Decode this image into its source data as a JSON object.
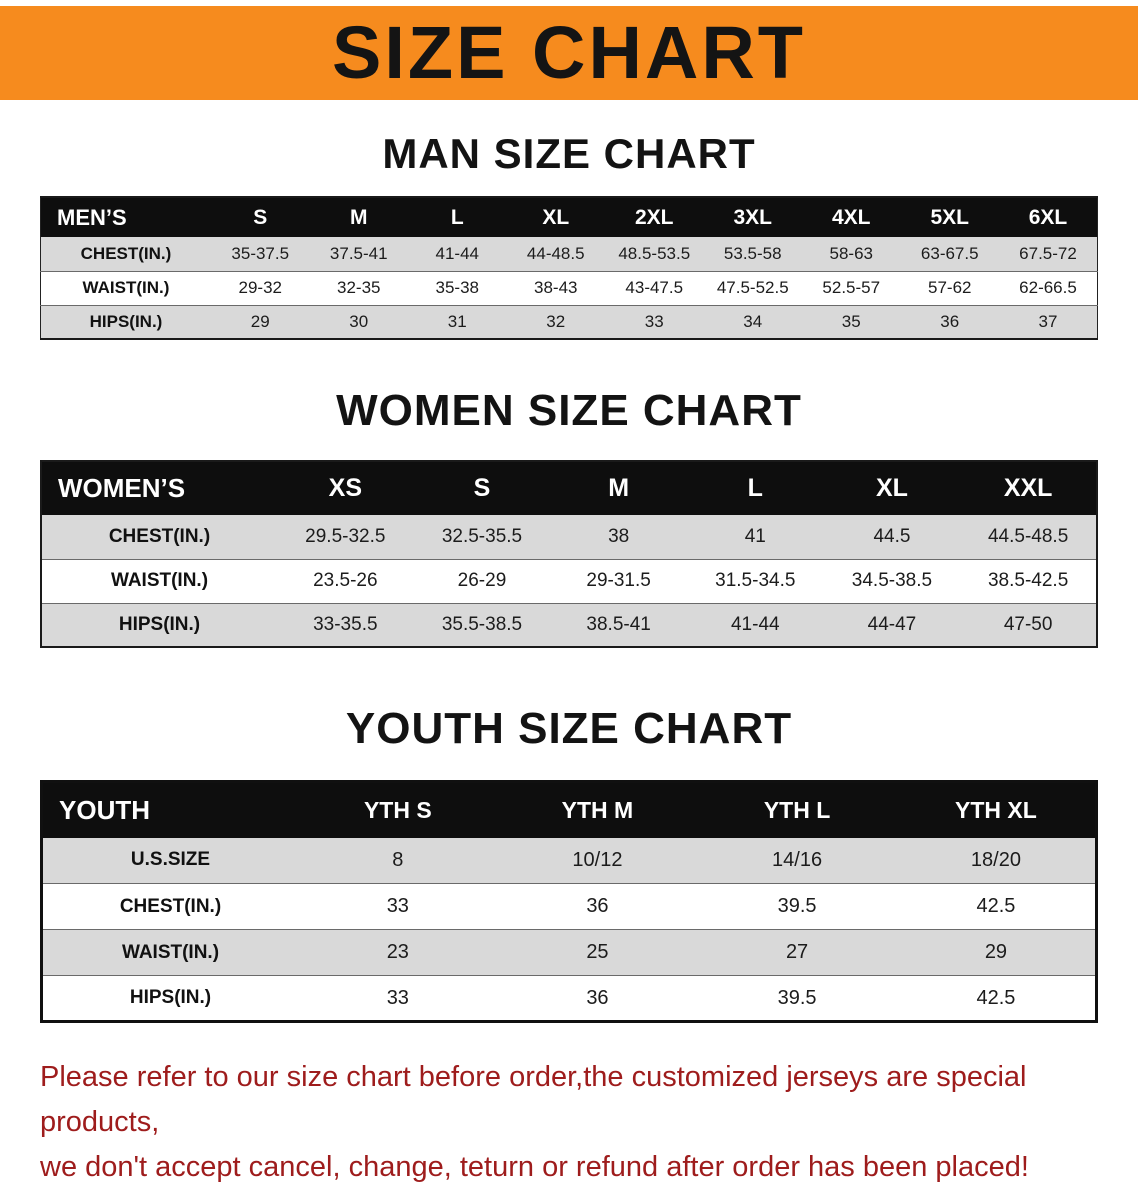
{
  "banner": {
    "title": "SIZE CHART",
    "background_color": "#f68b1e",
    "text_color": "#141414"
  },
  "sections": [
    {
      "id": "men",
      "heading": "MAN SIZE CHART",
      "table": {
        "header": [
          "MEN’S",
          "S",
          "M",
          "L",
          "XL",
          "2XL",
          "3XL",
          "4XL",
          "5XL",
          "6XL"
        ],
        "rows": [
          [
            "CHEST(IN.)",
            "35-37.5",
            "37.5-41",
            "41-44",
            "44-48.5",
            "48.5-53.5",
            "53.5-58",
            "58-63",
            "63-67.5",
            "67.5-72"
          ],
          [
            "WAIST(IN.)",
            "29-32",
            "32-35",
            "35-38",
            "38-43",
            "43-47.5",
            "47.5-52.5",
            "52.5-57",
            "57-62",
            "62-66.5"
          ],
          [
            "HIPS(IN.)",
            "29",
            "30",
            "31",
            "32",
            "33",
            "34",
            "35",
            "36",
            "37"
          ]
        ]
      }
    },
    {
      "id": "women",
      "heading": "WOMEN SIZE CHART",
      "table": {
        "header": [
          "WOMEN’S",
          "XS",
          "S",
          "M",
          "L",
          "XL",
          "XXL"
        ],
        "rows": [
          [
            "CHEST(IN.)",
            "29.5-32.5",
            "32.5-35.5",
            "38",
            "41",
            "44.5",
            "44.5-48.5"
          ],
          [
            "WAIST(IN.)",
            "23.5-26",
            "26-29",
            "29-31.5",
            "31.5-34.5",
            "34.5-38.5",
            "38.5-42.5"
          ],
          [
            "HIPS(IN.)",
            "33-35.5",
            "35.5-38.5",
            "38.5-41",
            "41-44",
            "44-47",
            "47-50"
          ]
        ]
      }
    },
    {
      "id": "youth",
      "heading": "YOUTH SIZE CHART",
      "table": {
        "header": [
          "YOUTH",
          "YTH S",
          "YTH M",
          "YTH L",
          "YTH XL"
        ],
        "rows": [
          [
            "U.S.SIZE",
            "8",
            "10/12",
            "14/16",
            "18/20"
          ],
          [
            "CHEST(IN.)",
            "33",
            "36",
            "39.5",
            "42.5"
          ],
          [
            "WAIST(IN.)",
            "23",
            "25",
            "27",
            "29"
          ],
          [
            "HIPS(IN.)",
            "33",
            "36",
            "39.5",
            "42.5"
          ]
        ]
      }
    }
  ],
  "footer": {
    "line1": "Please refer to our size chart before order,the customized jerseys are special products,",
    "line2": "we don't accept cancel, change, teturn or refund after order has been placed!",
    "text_color": "#9e1c1c"
  },
  "colors": {
    "table_header_bg": "#0e0e0e",
    "table_header_text": "#ffffff",
    "alt_row_bg": "#d9d9d9"
  }
}
